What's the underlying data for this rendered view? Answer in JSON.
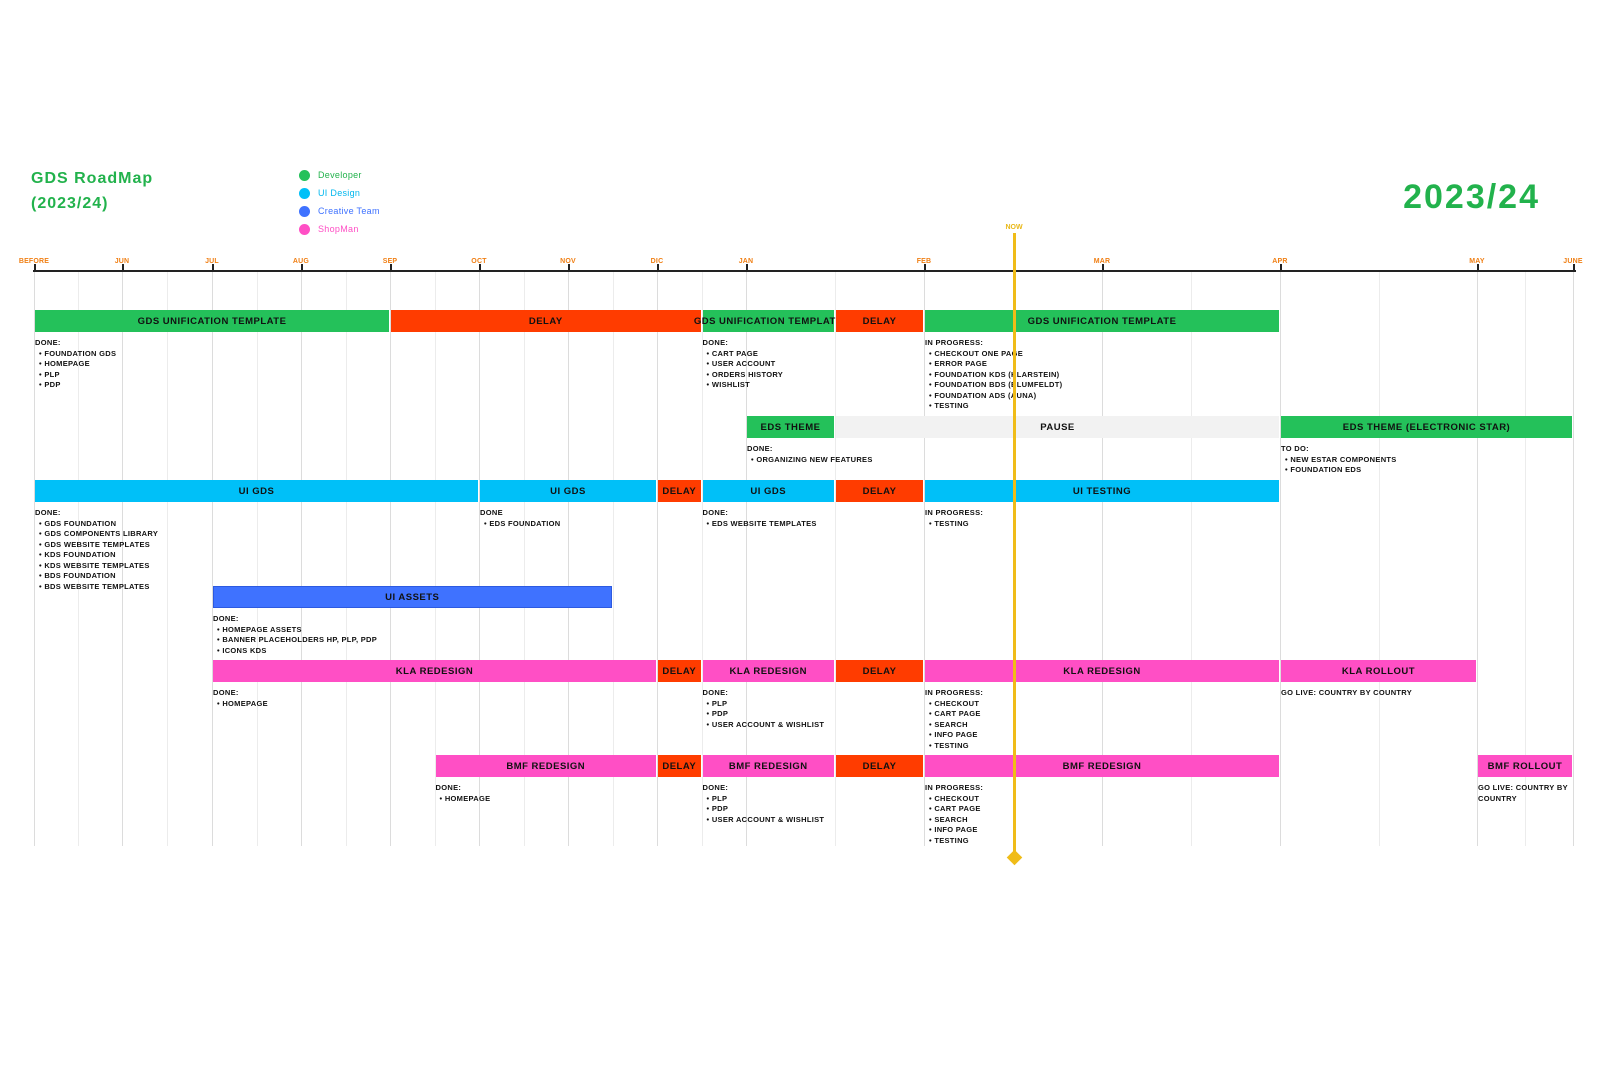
{
  "title_line1": "GDS RoadMap",
  "title_line2": "(2023/24)",
  "year_label": "2023/24",
  "now_label": "NOW",
  "now_month": 9.5,
  "colors": {
    "developer": "#24c15a",
    "ui_design": "#00c0f8",
    "creative": "#3f72ff",
    "shopman": "#ff4fc5",
    "delay": "#ff3c00",
    "pause": "#f2f2f2",
    "now": "#f0bc18"
  },
  "legend": [
    {
      "label": "Developer",
      "color": "#24c15a",
      "text_color": "#22b24c"
    },
    {
      "label": "UI Design",
      "color": "#00c0f8",
      "text_color": "#00b7ee"
    },
    {
      "label": "Creative Team",
      "color": "#3f72ff",
      "text_color": "#3f72ff"
    },
    {
      "label": "ShopMan",
      "color": "#ff4fc5",
      "text_color": "#ff4fc5"
    }
  ],
  "months": [
    "BEFORE",
    "JUN",
    "JUL",
    "AUG",
    "SEP",
    "OCT",
    "NOV",
    "DIC",
    "JAN",
    "FEB",
    "MAR",
    "APR",
    "MAY",
    "JUNE"
  ],
  "rows": [
    {
      "bars": [
        {
          "label": "GDS UNIFICATION TEMPLATE",
          "start": 0,
          "end": 4,
          "kind": "developer"
        },
        {
          "label": "DELAY",
          "start": 4,
          "end": 7.5,
          "kind": "delay"
        },
        {
          "label": "GDS UNIFICATION TEMPLATE",
          "start": 7.5,
          "end": 8.5,
          "kind": "developer"
        },
        {
          "label": "DELAY",
          "start": 8.5,
          "end": 9,
          "kind": "delay"
        },
        {
          "label": "GDS UNIFICATION TEMPLATE",
          "start": 9,
          "end": 11,
          "kind": "developer"
        }
      ],
      "notes": [
        {
          "at": 0,
          "heading": "DONE:",
          "items": [
            "FOUNDATION GDS",
            "HOMEPAGE",
            "PLP",
            "PDP"
          ]
        },
        {
          "at": 7.5,
          "heading": "DONE:",
          "items": [
            "CART PAGE",
            "USER ACCOUNT",
            "ORDERS HISTORY",
            "WISHLIST"
          ]
        },
        {
          "at": 9,
          "heading": "IN PROGRESS:",
          "items": [
            "CHECKOUT ONE PAGE",
            "ERROR PAGE",
            "FOUNDATION KDS (KLARSTEIN)",
            "FOUNDATION BDS (BLUMFELDT)",
            "FOUNDATION ADS (AUNA)",
            "TESTING"
          ]
        }
      ]
    },
    {
      "bars": [
        {
          "label": "EDS THEME",
          "start": 8,
          "end": 8.5,
          "kind": "developer"
        },
        {
          "label": "PAUSE",
          "start": 8.5,
          "end": 11,
          "kind": "pause"
        },
        {
          "label": "EDS THEME (ELECTRONIC STAR)",
          "start": 11,
          "end": 13,
          "kind": "developer"
        }
      ],
      "notes": [
        {
          "at": 8,
          "heading": "DONE:",
          "items": [
            "ORGANIZING NEW FEATURES"
          ]
        },
        {
          "at": 11,
          "heading": "TO DO:",
          "items": [
            "NEW ESTAR COMPONENTS",
            "FOUNDATION EDS"
          ]
        }
      ]
    },
    {
      "bars": [
        {
          "label": "UI GDS",
          "start": 0,
          "end": 5,
          "kind": "ui_design"
        },
        {
          "label": "UI GDS",
          "start": 5,
          "end": 7,
          "kind": "ui_design"
        },
        {
          "label": "DELAY",
          "start": 7,
          "end": 7.5,
          "kind": "delay"
        },
        {
          "label": "UI GDS",
          "start": 7.5,
          "end": 8.5,
          "kind": "ui_design"
        },
        {
          "label": "DELAY",
          "start": 8.5,
          "end": 9,
          "kind": "delay"
        },
        {
          "label": "UI TESTING",
          "start": 9,
          "end": 11,
          "kind": "ui_design"
        }
      ],
      "notes": [
        {
          "at": 0,
          "heading": "DONE:",
          "items": [
            "GDS FOUNDATION",
            "GDS COMPONENTS LIBRARY",
            "GDS WEBSITE TEMPLATES",
            "KDS FOUNDATION",
            "KDS WEBSITE TEMPLATES",
            "BDS FOUNDATION",
            "BDS WEBSITE TEMPLATES"
          ]
        },
        {
          "at": 5,
          "heading": "DONE",
          "items": [
            "EDS FOUNDATION"
          ]
        },
        {
          "at": 7.5,
          "heading": "DONE:",
          "items": [
            "EDS WEBSITE TEMPLATES"
          ]
        },
        {
          "at": 9,
          "heading": "IN PROGRESS:",
          "items": [
            "TESTING"
          ]
        }
      ]
    },
    {
      "bars": [
        {
          "label": "UI ASSETS",
          "start": 2,
          "end": 6.5,
          "kind": "creative"
        }
      ],
      "notes": [
        {
          "at": 2,
          "heading": "DONE:",
          "items": [
            "HOMEPAGE ASSETS",
            "BANNER PLACEHOLDERS HP, PLP, PDP",
            "ICONS KDS"
          ]
        }
      ]
    },
    {
      "bars": [
        {
          "label": "KLA REDESIGN",
          "start": 2,
          "end": 7,
          "kind": "shopman"
        },
        {
          "label": "DELAY",
          "start": 7,
          "end": 7.5,
          "kind": "delay"
        },
        {
          "label": "KLA REDESIGN",
          "start": 7.5,
          "end": 8.5,
          "kind": "shopman"
        },
        {
          "label": "DELAY",
          "start": 8.5,
          "end": 9,
          "kind": "delay"
        },
        {
          "label": "KLA REDESIGN",
          "start": 9,
          "end": 11,
          "kind": "shopman"
        },
        {
          "label": "KLA ROLLOUT",
          "start": 11,
          "end": 12,
          "kind": "shopman"
        }
      ],
      "notes": [
        {
          "at": 2,
          "heading": "DONE:",
          "items": [
            "HOMEPAGE"
          ]
        },
        {
          "at": 7.5,
          "heading": "DONE:",
          "items": [
            "PLP",
            "PDP",
            "USER ACCOUNT & WISHLIST"
          ]
        },
        {
          "at": 9,
          "heading": "IN PROGRESS:",
          "items": [
            "CHECKOUT",
            "CART PAGE",
            "SEARCH",
            "INFO PAGE",
            "TESTING"
          ]
        },
        {
          "at": 11,
          "heading": "GO LIVE: COUNTRY BY COUNTRY",
          "items": []
        }
      ]
    },
    {
      "bars": [
        {
          "label": "BMF REDESIGN",
          "start": 4.5,
          "end": 7,
          "kind": "shopman"
        },
        {
          "label": "DELAY",
          "start": 7,
          "end": 7.5,
          "kind": "delay"
        },
        {
          "label": "BMF REDESIGN",
          "start": 7.5,
          "end": 8.5,
          "kind": "shopman"
        },
        {
          "label": "DELAY",
          "start": 8.5,
          "end": 9,
          "kind": "delay"
        },
        {
          "label": "BMF REDESIGN",
          "start": 9,
          "end": 11,
          "kind": "shopman"
        },
        {
          "label": "BMF ROLLOUT",
          "start": 12,
          "end": 13,
          "kind": "shopman"
        }
      ],
      "notes": [
        {
          "at": 4.5,
          "heading": "DONE:",
          "items": [
            "HOMEPAGE"
          ]
        },
        {
          "at": 7.5,
          "heading": "DONE:",
          "items": [
            "PLP",
            "PDP",
            "USER ACCOUNT & WISHLIST"
          ]
        },
        {
          "at": 9,
          "heading": "IN PROGRESS:",
          "items": [
            "CHECKOUT",
            "CART PAGE",
            "SEARCH",
            "INFO PAGE",
            "TESTING"
          ]
        },
        {
          "at": 12,
          "heading": "GO LIVE: COUNTRY BY",
          "items": [],
          "extra": "COUNTRY"
        }
      ]
    }
  ]
}
